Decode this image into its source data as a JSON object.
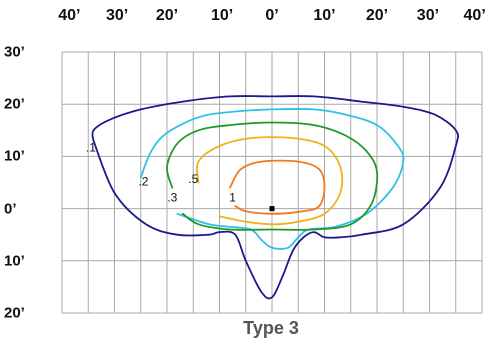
{
  "chart_data": {
    "type": "line",
    "title": "Type 3",
    "x_tick_labels": [
      "40’",
      "30’",
      "20’",
      "10’",
      "0’",
      "10’",
      "20’",
      "30’",
      "40’"
    ],
    "x_ticks": [
      -40,
      -30,
      -20,
      -10,
      0,
      10,
      20,
      30,
      40
    ],
    "y_tick_labels": [
      "30’",
      "20’",
      "10’",
      "0’",
      "10’",
      "20’"
    ],
    "y_ticks": [
      30,
      20,
      10,
      0,
      -10,
      -20
    ],
    "xlim": [
      -40,
      40
    ],
    "ylim": [
      -20,
      30
    ],
    "grid": true,
    "fixture_location": [
      0,
      0
    ],
    "series": [
      {
        "name": ".1",
        "color": "#1a1a8c",
        "points": [
          [
            -34,
            13
          ],
          [
            -34,
            15
          ],
          [
            -31,
            17
          ],
          [
            -25,
            19
          ],
          [
            -17,
            20.5
          ],
          [
            -8,
            21.5
          ],
          [
            0,
            21.5
          ],
          [
            8,
            21.5
          ],
          [
            17,
            20.5
          ],
          [
            25,
            19.5
          ],
          [
            31,
            18
          ],
          [
            35,
            15
          ],
          [
            35,
            12
          ],
          [
            32,
            4
          ],
          [
            25,
            -3
          ],
          [
            17,
            -5
          ],
          [
            13,
            -5.5
          ],
          [
            10,
            -5.5
          ],
          [
            8,
            -4.5
          ],
          [
            6,
            -5.5
          ],
          [
            4,
            -8
          ],
          [
            2,
            -13
          ],
          [
            0,
            -17
          ],
          [
            -2,
            -16
          ],
          [
            -5,
            -10
          ],
          [
            -7,
            -5
          ],
          [
            -10,
            -4.5
          ],
          [
            -12,
            -5
          ],
          [
            -18,
            -5
          ],
          [
            -24,
            -3
          ],
          [
            -30,
            3
          ],
          [
            -34,
            13
          ]
        ]
      },
      {
        "name": ".2",
        "color": "#2fc0e6",
        "points": [
          [
            -25,
            6
          ],
          [
            -23,
            11
          ],
          [
            -20,
            14.5
          ],
          [
            -14,
            17.5
          ],
          [
            -8,
            18.5
          ],
          [
            0,
            19
          ],
          [
            8,
            19
          ],
          [
            14,
            18
          ],
          [
            20,
            16
          ],
          [
            24,
            12
          ],
          [
            25,
            9
          ],
          [
            23,
            4
          ],
          [
            18,
            -1
          ],
          [
            12,
            -3.5
          ],
          [
            7,
            -4
          ],
          [
            5,
            -5.5
          ],
          [
            3,
            -7.5
          ],
          [
            0,
            -7.5
          ],
          [
            -2,
            -6
          ],
          [
            -4,
            -4
          ],
          [
            -8,
            -3.5
          ],
          [
            -12,
            -3
          ],
          [
            -18,
            -1
          ]
        ]
      },
      {
        "name": ".3",
        "color": "#1f9a2a",
        "points": [
          [
            -19,
            4
          ],
          [
            -20,
            8
          ],
          [
            -18,
            12.5
          ],
          [
            -14,
            15
          ],
          [
            -8,
            16
          ],
          [
            0,
            16.5
          ],
          [
            8,
            16
          ],
          [
            14,
            14
          ],
          [
            18,
            11
          ],
          [
            20,
            7
          ],
          [
            19,
            1
          ],
          [
            15,
            -3
          ],
          [
            8,
            -4
          ],
          [
            0,
            -4
          ],
          [
            -8,
            -4
          ],
          [
            -14,
            -3
          ],
          [
            -17,
            -1
          ]
        ]
      },
      {
        "name": ".5",
        "color": "#f0b21b",
        "points": [
          [
            -14,
            5
          ],
          [
            -14,
            9
          ],
          [
            -10,
            12
          ],
          [
            -4,
            13.5
          ],
          [
            4,
            13.5
          ],
          [
            10,
            12
          ],
          [
            13,
            8
          ],
          [
            13,
            3
          ],
          [
            10,
            -1
          ],
          [
            5,
            -2.5
          ],
          [
            0,
            -3
          ],
          [
            -5,
            -2.5
          ],
          [
            -10,
            -1.5
          ]
        ]
      },
      {
        "name": "1",
        "color": "#f07a1c",
        "points": [
          [
            -8,
            4
          ],
          [
            -6,
            7.5
          ],
          [
            -2,
            9
          ],
          [
            5,
            9
          ],
          [
            9,
            7.5
          ],
          [
            10,
            4
          ],
          [
            9,
            0.5
          ],
          [
            6,
            -0.5
          ],
          [
            0,
            -1
          ],
          [
            -5,
            -0.5
          ],
          [
            -7,
            0.5
          ]
        ]
      }
    ],
    "contour_labels": [
      {
        "text": ".1",
        "x": -34.5,
        "y": 11.5
      },
      {
        "text": ".2",
        "x": -24.5,
        "y": 5
      },
      {
        "text": ".3",
        "x": -19,
        "y": 2
      },
      {
        "text": ".5",
        "x": -15,
        "y": 5.5
      },
      {
        "text": "1",
        "x": -7.5,
        "y": 2
      }
    ]
  }
}
